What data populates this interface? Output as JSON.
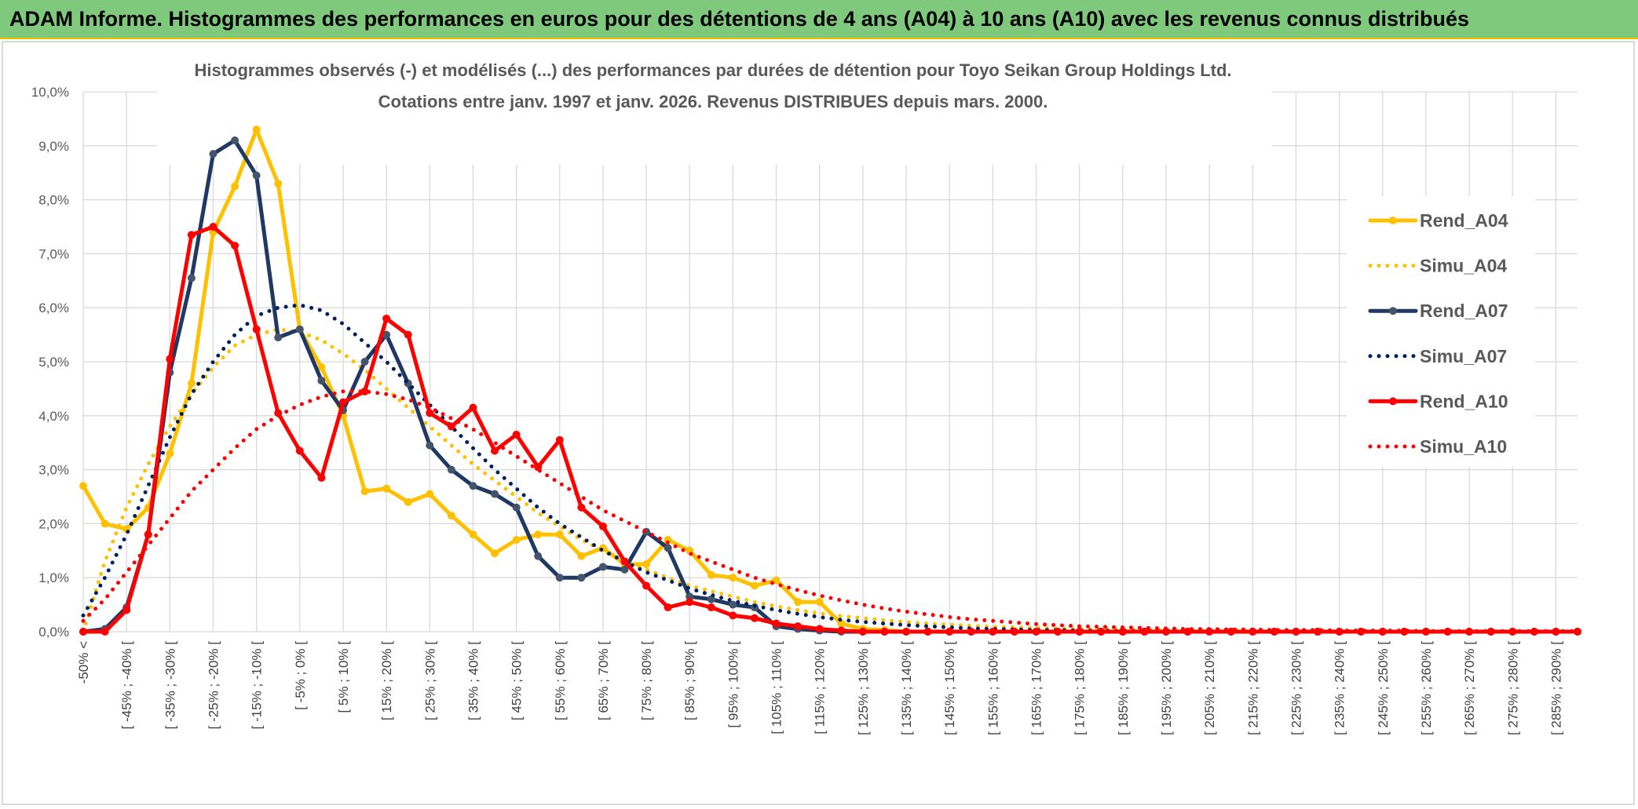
{
  "header": {
    "title": "ADAM Informe. Histogrammes des performances en euros pour des détentions de 4 ans (A04) à 10 ans (A10) avec les revenus connus distribués"
  },
  "chart_data": {
    "type": "line",
    "title": "Histogrammes observés (-) et modélisés (...) des performances par durées de détention pour Toyo Seikan Group Holdings Ltd.",
    "subtitle": "Cotations entre janv. 1997 et janv. 2026. Revenus DISTRIBUES depuis mars. 2000.",
    "categories": [
      "-50% <",
      null,
      "[ -45% ; -40% [",
      null,
      "[ -35% ; -30% [",
      null,
      "[ -25% ; -20% [",
      null,
      "[ -15% ; -10% [",
      null,
      "[ -5% ; 0% [",
      null,
      "[ 5% ; 10% [",
      null,
      "[ 15% ; 20% [",
      null,
      "[ 25% ; 30% [",
      null,
      "[ 35% ; 40% [",
      null,
      "[ 45% ; 50% [",
      null,
      "[ 55% ; 60% [",
      null,
      "[ 65% ; 70% [",
      null,
      "[ 75% ; 80% [",
      null,
      "[ 85% ; 90% [",
      null,
      "[ 95% ; 100% [",
      null,
      "[ 105% ; 110% [",
      null,
      "[ 115% ; 120% [",
      null,
      "[ 125% ; 130% [",
      null,
      "[ 135% ; 140% [",
      null,
      "[ 145% ; 150% [",
      null,
      "[ 155% ; 160% [",
      null,
      "[ 165% ; 170% [",
      null,
      "[ 175% ; 180% [",
      null,
      "[ 185% ; 190% [",
      null,
      "[ 195% ; 200% [",
      null,
      "[ 205% ; 210% [",
      null,
      "[ 215% ; 220% [",
      null,
      "[ 225% ; 230% [",
      null,
      "[ 235% ; 240% [",
      null,
      "[ 245% ; 250% [",
      null,
      "[ 255% ; 260% [",
      null,
      "[ 265% ; 270% [",
      null,
      "[ 275% ; 280% [",
      null,
      "[ 285% ; 290% [",
      null
    ],
    "series": [
      {
        "name": "Rend_A04",
        "color": "#ffc000",
        "style": "solid",
        "values": [
          2.7,
          2.0,
          1.9,
          2.3,
          3.3,
          4.6,
          7.4,
          8.25,
          9.3,
          8.3,
          5.6,
          4.9,
          4.0,
          2.6,
          2.65,
          2.4,
          2.55,
          2.15,
          1.8,
          1.45,
          1.7,
          1.8,
          1.8,
          1.4,
          1.55,
          1.25,
          1.25,
          1.7,
          1.5,
          1.05,
          1.0,
          0.85,
          0.95,
          0.55,
          0.55,
          0.15,
          0.05,
          0.03,
          0,
          0,
          0,
          0,
          0,
          0,
          0,
          0,
          0,
          0,
          0,
          0,
          0,
          0,
          0,
          0,
          0,
          0,
          0,
          0,
          0,
          0,
          0,
          0,
          0,
          0,
          0,
          0,
          0,
          0,
          0,
          0
        ]
      },
      {
        "name": "Simu_A04",
        "color": "#ffc000",
        "style": "dotted",
        "values": [
          0,
          1.3,
          2.3,
          3.1,
          3.8,
          4.4,
          4.9,
          5.3,
          5.5,
          5.6,
          5.55,
          5.4,
          5.15,
          4.85,
          4.5,
          4.15,
          3.8,
          3.45,
          3.1,
          2.8,
          2.5,
          2.2,
          1.95,
          1.7,
          1.5,
          1.3,
          1.15,
          1.0,
          0.85,
          0.75,
          0.65,
          0.55,
          0.47,
          0.4,
          0.34,
          0.29,
          0.25,
          0.21,
          0.18,
          0.15,
          0.13,
          0.11,
          0.09,
          0.08,
          0.07,
          0.06,
          0.05,
          0.04,
          0.04,
          0.03,
          0.03,
          0.02,
          0.02,
          0.02,
          0.01,
          0.01,
          0.01,
          0.01,
          0.01,
          0.01,
          0,
          0,
          0,
          0,
          0,
          0,
          0,
          0,
          0,
          0
        ]
      },
      {
        "name": "Rend_A07",
        "color": "#1f3864",
        "style": "solid",
        "values": [
          0,
          0.05,
          0.45,
          1.8,
          4.8,
          6.55,
          8.85,
          9.1,
          8.45,
          5.45,
          5.6,
          4.65,
          4.1,
          5.0,
          5.5,
          4.6,
          3.45,
          3.0,
          2.7,
          2.55,
          2.3,
          1.4,
          1.0,
          1.0,
          1.2,
          1.15,
          1.85,
          1.55,
          0.65,
          0.6,
          0.5,
          0.45,
          0.1,
          0.05,
          0.02,
          0,
          0,
          0,
          0,
          0,
          0,
          0,
          0,
          0,
          0,
          0,
          0,
          0,
          0,
          0,
          0,
          0,
          0,
          0,
          0,
          0,
          0,
          0,
          0,
          0,
          0,
          0,
          0,
          0,
          0,
          0,
          0,
          0,
          0,
          0
        ]
      },
      {
        "name": "Simu_A07",
        "color": "#002060",
        "style": "dotted",
        "values": [
          0.3,
          1.0,
          1.8,
          2.7,
          3.6,
          4.4,
          5.0,
          5.5,
          5.85,
          6.0,
          6.05,
          5.95,
          5.7,
          5.35,
          5.0,
          4.6,
          4.2,
          3.8,
          3.4,
          3.0,
          2.65,
          2.3,
          2.0,
          1.75,
          1.5,
          1.3,
          1.1,
          0.95,
          0.8,
          0.68,
          0.57,
          0.48,
          0.4,
          0.33,
          0.27,
          0.22,
          0.18,
          0.15,
          0.12,
          0.1,
          0.08,
          0.06,
          0.05,
          0.04,
          0.03,
          0.03,
          0.02,
          0.02,
          0.01,
          0.01,
          0,
          0,
          0,
          0,
          0,
          0,
          0,
          0,
          0,
          0,
          0,
          0,
          0,
          0,
          0,
          0,
          0,
          0,
          0,
          0
        ]
      },
      {
        "name": "Rend_A10",
        "color": "#ff0000",
        "style": "solid",
        "values": [
          0,
          0,
          0.4,
          1.8,
          5.05,
          7.35,
          7.5,
          7.15,
          5.6,
          4.05,
          3.35,
          2.85,
          4.25,
          4.45,
          5.8,
          5.5,
          4.05,
          3.8,
          4.15,
          3.35,
          3.65,
          3.05,
          3.55,
          2.3,
          1.95,
          1.3,
          0.85,
          0.45,
          0.55,
          0.45,
          0.3,
          0.25,
          0.15,
          0.1,
          0.05,
          0.02,
          0,
          0,
          0,
          0,
          0,
          0,
          0,
          0,
          0,
          0,
          0,
          0,
          0,
          0,
          0,
          0,
          0,
          0,
          0,
          0,
          0,
          0,
          0,
          0,
          0,
          0,
          0,
          0,
          0,
          0,
          0,
          0,
          0,
          0
        ]
      },
      {
        "name": "Simu_A10",
        "color": "#ff0000",
        "style": "dotted",
        "values": [
          0.2,
          0.6,
          1.1,
          1.6,
          2.1,
          2.6,
          3.0,
          3.4,
          3.75,
          4.0,
          4.2,
          4.35,
          4.45,
          4.45,
          4.4,
          4.3,
          4.15,
          3.95,
          3.75,
          3.5,
          3.25,
          3.0,
          2.75,
          2.5,
          2.25,
          2.05,
          1.85,
          1.65,
          1.45,
          1.3,
          1.15,
          1.0,
          0.88,
          0.77,
          0.67,
          0.58,
          0.5,
          0.43,
          0.37,
          0.32,
          0.27,
          0.23,
          0.2,
          0.17,
          0.14,
          0.12,
          0.1,
          0.09,
          0.08,
          0.07,
          0.06,
          0.05,
          0.05,
          0.04,
          0.04,
          0.03,
          0.03,
          0.03,
          0.02,
          0.02,
          0.02,
          0.02,
          0.01,
          0.01,
          0.01,
          0.01,
          0.01,
          0.01,
          0.01,
          0.01
        ]
      }
    ],
    "ylim": [
      0,
      10
    ],
    "yticks": [
      {
        "value": 0,
        "label": "0,0%"
      },
      {
        "value": 1,
        "label": "1,0%"
      },
      {
        "value": 2,
        "label": "2,0%"
      },
      {
        "value": 3,
        "label": "3,0%"
      },
      {
        "value": 4,
        "label": "4,0%"
      },
      {
        "value": 5,
        "label": "5,0%"
      },
      {
        "value": 6,
        "label": "6,0%"
      },
      {
        "value": 7,
        "label": "7,0%"
      },
      {
        "value": 8,
        "label": "8,0%"
      },
      {
        "value": 9,
        "label": "9,0%"
      },
      {
        "value": 10,
        "label": "10,0%"
      }
    ],
    "grid": true,
    "legend": "right"
  }
}
